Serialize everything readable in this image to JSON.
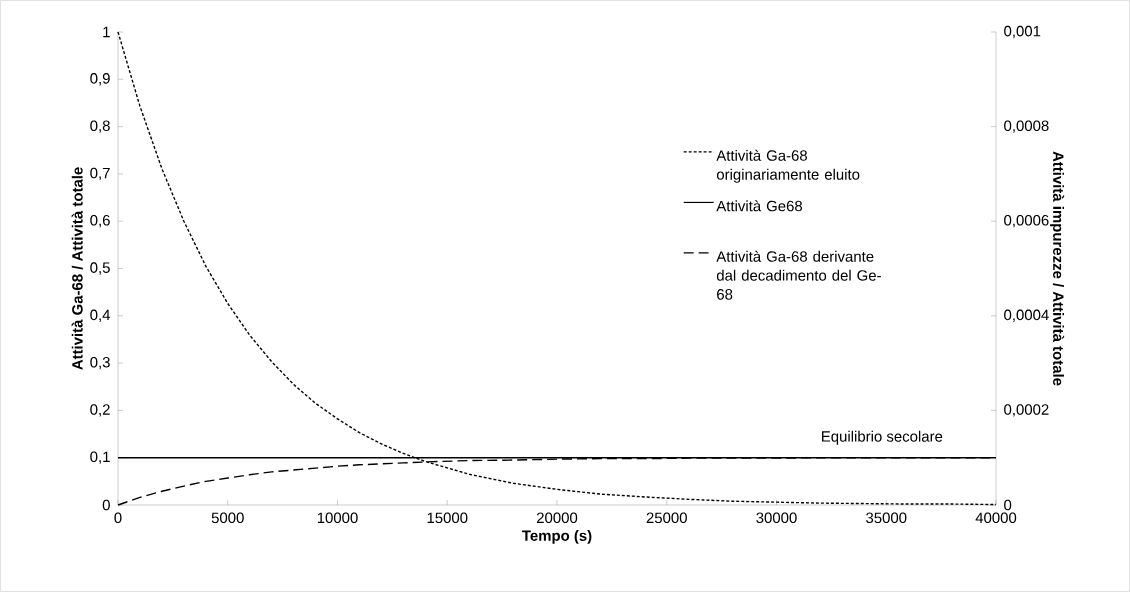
{
  "chart_data": {
    "type": "line",
    "xlabel": "Tempo (s)",
    "ylabel": "Attività Ga-68 / Attività totale",
    "y2label": "Attività impurezze / Attività totale",
    "x": [
      0,
      1000,
      2000,
      3000,
      4000,
      5000,
      6000,
      7000,
      8000,
      9000,
      10000,
      11000,
      12000,
      13000,
      14000,
      16000,
      18000,
      20000,
      22000,
      24000,
      26000,
      28000,
      30000,
      32000,
      34000,
      36000,
      38000,
      40000
    ],
    "series": [
      {
        "name": "Attività Ga-68 originariamente eluito",
        "color": "#000000",
        "line_style": "dotted",
        "values": [
          1,
          0.843,
          0.711,
          0.6,
          0.505,
          0.426,
          0.359,
          0.303,
          0.255,
          0.215,
          0.182,
          0.153,
          0.129,
          0.109,
          0.092,
          0.065,
          0.046,
          0.033,
          0.023,
          0.017,
          0.012,
          0.008,
          0.006,
          0.004,
          0.003,
          0.002,
          0.002,
          0.001
        ]
      },
      {
        "name": "Attività Ge68",
        "color": "#000000",
        "line_style": "solid",
        "values": [
          0.1,
          0.1,
          0.1,
          0.1,
          0.1,
          0.1,
          0.1,
          0.1,
          0.1,
          0.1,
          0.1,
          0.1,
          0.1,
          0.1,
          0.1,
          0.1,
          0.1,
          0.1,
          0.1,
          0.1,
          0.1,
          0.1,
          0.1,
          0.1,
          0.1,
          0.1,
          0.1,
          0.1
        ]
      },
      {
        "name": "Attività Ga-68 derivante dal decadimento del Ge-68",
        "color": "#000000",
        "line_style": "dashed",
        "values": [
          0,
          0.016,
          0.029,
          0.04,
          0.05,
          0.057,
          0.064,
          0.07,
          0.074,
          0.078,
          0.082,
          0.085,
          0.087,
          0.089,
          0.091,
          0.094,
          0.095,
          0.097,
          0.098,
          0.098,
          0.099,
          0.099,
          0.099,
          0.1,
          0.1,
          0.1,
          0.1,
          0.1
        ]
      }
    ],
    "xlim": [
      0,
      40000
    ],
    "xticks": [
      0,
      5000,
      10000,
      15000,
      20000,
      25000,
      30000,
      35000,
      40000
    ],
    "ylim": [
      0,
      1
    ],
    "yticks": [
      {
        "value": 0,
        "label": "0"
      },
      {
        "value": 0.1,
        "label": "0,1"
      },
      {
        "value": 0.2,
        "label": "0,2"
      },
      {
        "value": 0.3,
        "label": "0,3"
      },
      {
        "value": 0.4,
        "label": "0,4"
      },
      {
        "value": 0.5,
        "label": "0,5"
      },
      {
        "value": 0.6,
        "label": "0,6"
      },
      {
        "value": 0.7,
        "label": "0,7"
      },
      {
        "value": 0.8,
        "label": "0,8"
      },
      {
        "value": 0.9,
        "label": "0,9"
      },
      {
        "value": 1,
        "label": "1"
      }
    ],
    "y2lim": [
      0,
      0.001
    ],
    "y2ticks": [
      {
        "value": 0,
        "label": "0"
      },
      {
        "value": 0.0002,
        "label": "0,0002"
      },
      {
        "value": 0.0004,
        "label": "0,0004"
      },
      {
        "value": 0.0006,
        "label": "0,0006"
      },
      {
        "value": 0.0008,
        "label": "0,0008"
      },
      {
        "value": 0.001,
        "label": "0,001"
      }
    ],
    "annotations": [
      "Equilibrio secolare"
    ],
    "legend": "right",
    "marker": "none"
  }
}
